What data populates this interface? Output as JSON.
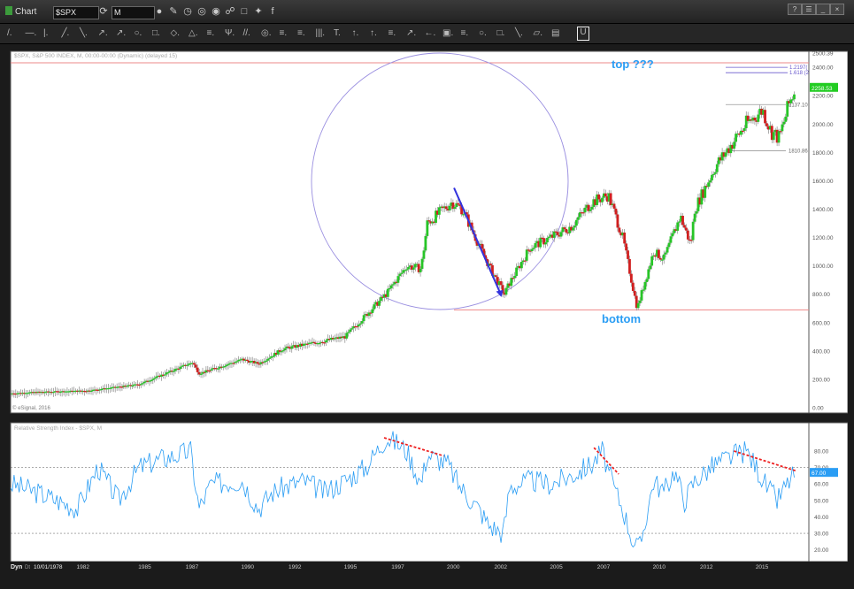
{
  "window": {
    "title": "Chart",
    "symbol": "$SPX",
    "interval": "M"
  },
  "toolbar_icons": [
    "refresh-icon",
    "zoom-icon",
    "pencil-icon",
    "clock-icon",
    "target-icon",
    "eye-icon",
    "link-icon",
    "comment-icon",
    "twitter-icon",
    "facebook-icon"
  ],
  "drawing_tools": [
    "/.",
    "—.",
    "|.",
    "╱.",
    "╲.",
    "↗.",
    "↗.",
    "○.",
    "□.",
    "◇.",
    "△.",
    "≡.",
    "Ψ.",
    "//.",
    "◎.",
    "≡.",
    "≡.",
    "|||.",
    "T.",
    "↑.",
    "↑.",
    "≡.",
    "↗.",
    "←.",
    "▣.",
    "≡.",
    "○.",
    "□.",
    "╲.",
    "▱.",
    "▤"
  ],
  "price_panel": {
    "header": "$SPX, S&P 500 INDEX, M, 00:00-00:00 (Dynamic) (delayed 15)",
    "copyright": "© eSignal, 2016",
    "annotation_top": "top ???",
    "annotation_bottom": "bottom",
    "y_ticks": [
      "2500.39",
      "2400.00",
      "2200.00",
      "2000.00",
      "1800.00",
      "1600.00",
      "1400.00",
      "1200.00",
      "1000.00",
      "800.00",
      "600.00",
      "400.00",
      "200.00",
      "0.00"
    ],
    "current_price_label": "2258.53",
    "levels": [
      {
        "label": "2137.10",
        "value": 2137.1
      },
      {
        "label": "1810.86",
        "value": 1810.86
      },
      {
        "label": "1.2197(",
        "value": 2400
      },
      {
        "label": "1.618 (2",
        "value": 2362
      }
    ]
  },
  "rsi_panel": {
    "header": "Relative Strength Index - $SPX, M",
    "y_ticks": [
      "80.00",
      "70.00",
      "60.00",
      "50.00",
      "40.00",
      "30.00",
      "20.00"
    ],
    "current_label": "67.00"
  },
  "x_axis": {
    "start_label": "10/01/1978",
    "labels": [
      "1982",
      "1985",
      "1987",
      "1990",
      "1992",
      "1995",
      "1997",
      "2000",
      "2002",
      "2005",
      "2007",
      "2010",
      "2012",
      "2015"
    ]
  },
  "status": {
    "mode": "Dyn",
    "sublabel": "Dt"
  },
  "chart_data": {
    "type": "line",
    "title": "$SPX, S&P 500 INDEX, M",
    "price": {
      "x": [
        1978.75,
        1980,
        1982.5,
        1985,
        1987.6,
        1987.9,
        1990,
        1990.8,
        1992,
        1995,
        1996,
        1997,
        1998,
        1998.7,
        1999,
        2000.2,
        2000.7,
        2001.5,
        2002,
        2002.75,
        2003,
        2004,
        2005,
        2006,
        2007,
        2007.8,
        2008.5,
        2009.2,
        2010,
        2010.5,
        2011.3,
        2011.8,
        2012,
        2013,
        2014,
        2014.5,
        2015.3,
        2015.7,
        2016.1,
        2016.6,
        2016.9
      ],
      "close": [
        100,
        110,
        120,
        165,
        320,
        240,
        340,
        310,
        415,
        500,
        650,
        800,
        1000,
        980,
        1300,
        1450,
        1400,
        1150,
        1000,
        800,
        880,
        1130,
        1200,
        1280,
        1450,
        1500,
        1200,
        700,
        1100,
        1050,
        1350,
        1150,
        1400,
        1700,
        1900,
        2000,
        2100,
        1950,
        1900,
        2150,
        2258.53
      ],
      "ylim": [
        0,
        2500.39
      ],
      "xlim": [
        1978.75,
        2017.2
      ]
    },
    "rsi": {
      "x": [
        1978.75,
        1980,
        1982,
        1983,
        1984,
        1985,
        1986,
        1987,
        1987.5,
        1987.9,
        1988.5,
        1990,
        1990.8,
        1991.5,
        1992,
        1993,
        1994,
        1995,
        1996,
        1997,
        1997.5,
        1998,
        1998.7,
        1999,
        2000,
        2000.5,
        2001,
        2001.5,
        2002,
        2002.7,
        2003,
        2004,
        2005,
        2006,
        2007,
        2007.5,
        2008,
        2008.5,
        2009,
        2009.3,
        2010,
        2010.5,
        2011,
        2011.5,
        2012,
        2013,
        2014,
        2014.5,
        2015,
        2015.5,
        2016,
        2016.6,
        2016.9
      ],
      "values": [
        60,
        55,
        45,
        70,
        50,
        70,
        75,
        78,
        80,
        45,
        60,
        62,
        45,
        55,
        58,
        62,
        55,
        62,
        70,
        88,
        85,
        80,
        60,
        78,
        72,
        60,
        52,
        45,
        35,
        30,
        58,
        62,
        60,
        65,
        72,
        80,
        60,
        45,
        25,
        20,
        62,
        55,
        68,
        50,
        62,
        72,
        78,
        80,
        70,
        58,
        50,
        62,
        67
      ],
      "ylim": [
        15,
        95
      ],
      "levels": [
        70,
        30
      ]
    }
  }
}
